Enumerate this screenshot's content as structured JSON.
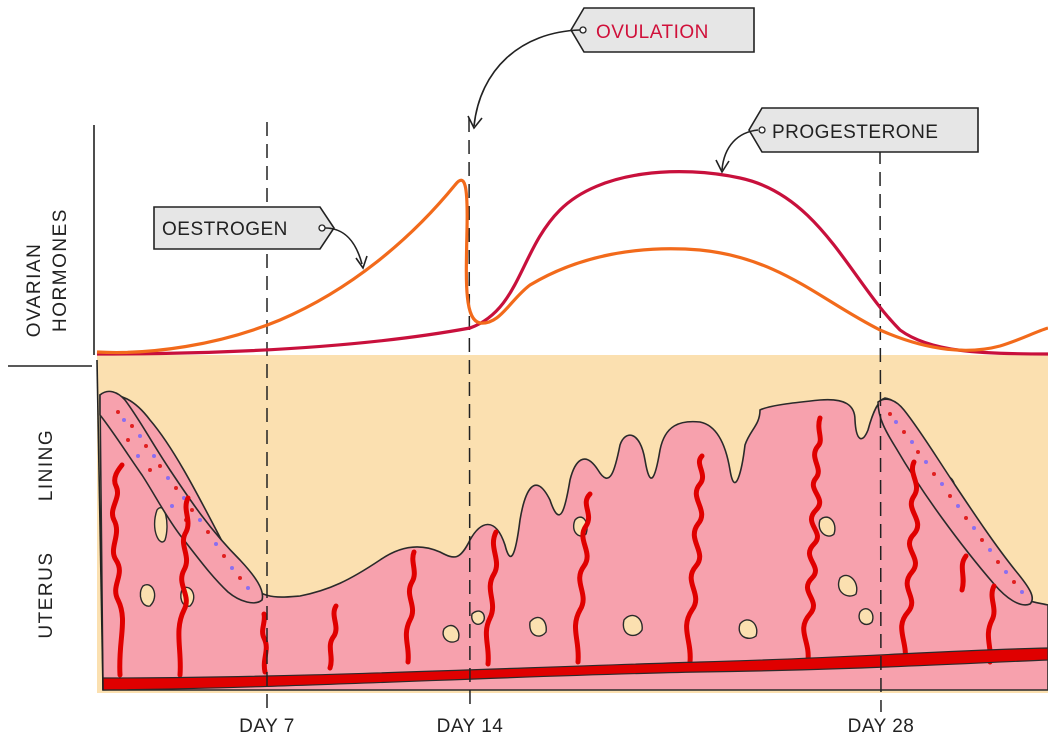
{
  "labels": {
    "ovulation": "OVULATION",
    "progesterone": "PROGESTERONE",
    "oestrogen": "OESTROGEN"
  },
  "side_labels": {
    "ovarian": "OVARIAN",
    "hormones": "HORMONES",
    "uterus": "UTERUS",
    "lining": "LINING"
  },
  "days": [
    "DAY 7",
    "DAY 14",
    "DAY 28"
  ],
  "colors": {
    "oestrogen": "#f26a1b",
    "progesterone": "#c8103c",
    "ovulation_text": "#d0103a",
    "lining_fill": "#f7a1ad",
    "background_band": "#fbe0b0",
    "blood_vessel": "#e00000",
    "tag_fill": "#e6e6e6"
  },
  "chart_data": {
    "type": "line",
    "x_markers": [
      "DAY 7",
      "DAY 14",
      "DAY 28"
    ],
    "series": [
      {
        "name": "OESTROGEN",
        "color": "#f26a1b"
      },
      {
        "name": "PROGESTERONE",
        "color": "#c8103c"
      }
    ],
    "annotations": [
      "OVULATION"
    ]
  }
}
